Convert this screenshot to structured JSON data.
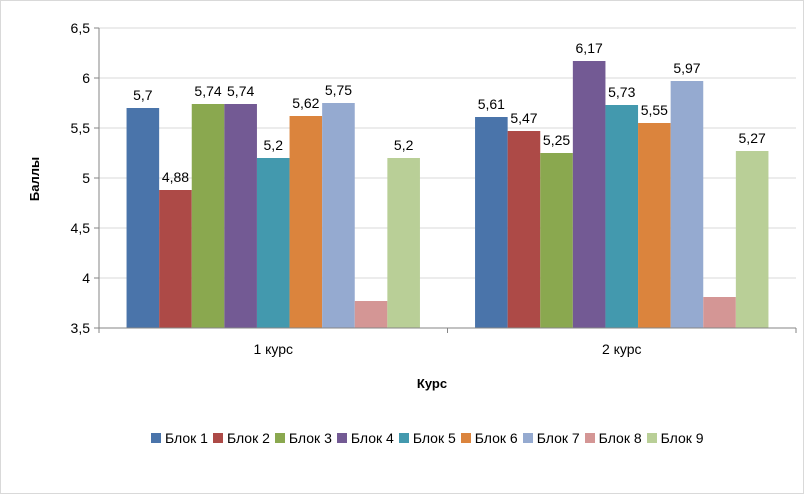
{
  "chart_data": {
    "type": "bar",
    "title": "",
    "xlabel": "Курс",
    "ylabel": "Баллы",
    "ylim": [
      3.5,
      6.5
    ],
    "yticks": [
      "3,5",
      "4",
      "4,5",
      "5",
      "5,5",
      "6",
      "6,5"
    ],
    "ytick_values": [
      3.5,
      4,
      4.5,
      5,
      5.5,
      6,
      6.5
    ],
    "categories": [
      "1 курс",
      "2 курс"
    ],
    "series": [
      {
        "name": "Блок 1",
        "color": "#4a74aa",
        "values": [
          5.7,
          5.61
        ],
        "labels": [
          "5,7",
          "5,61"
        ]
      },
      {
        "name": "Блок 2",
        "color": "#ad4a47",
        "values": [
          4.88,
          5.47
        ],
        "labels": [
          "4,88",
          "5,47"
        ]
      },
      {
        "name": "Блок 3",
        "color": "#8aa84f",
        "values": [
          5.74,
          5.25
        ],
        "labels": [
          "5,74",
          "5,25"
        ]
      },
      {
        "name": "Блок 4",
        "color": "#735a94",
        "values": [
          5.74,
          6.17
        ],
        "labels": [
          "5,74",
          "6,17"
        ]
      },
      {
        "name": "Блок 5",
        "color": "#4399ae",
        "values": [
          5.2,
          5.73
        ],
        "labels": [
          "5,2",
          "5,73"
        ]
      },
      {
        "name": "Блок 6",
        "color": "#db843d",
        "values": [
          5.62,
          5.55
        ],
        "labels": [
          "5,62",
          "5,55"
        ]
      },
      {
        "name": "Блок 7",
        "color": "#95aad0",
        "values": [
          5.75,
          5.97
        ],
        "labels": [
          "5,75",
          "5,97"
        ]
      },
      {
        "name": "Блок 8",
        "color": "#d49695",
        "values": [
          3.77,
          3.81
        ],
        "labels": [
          "",
          ""
        ]
      },
      {
        "name": "Блок 9",
        "color": "#b9cf97",
        "values": [
          5.2,
          5.27
        ],
        "labels": [
          "5,2",
          "5,27"
        ]
      }
    ],
    "grid": true,
    "legend_position": "bottom"
  }
}
